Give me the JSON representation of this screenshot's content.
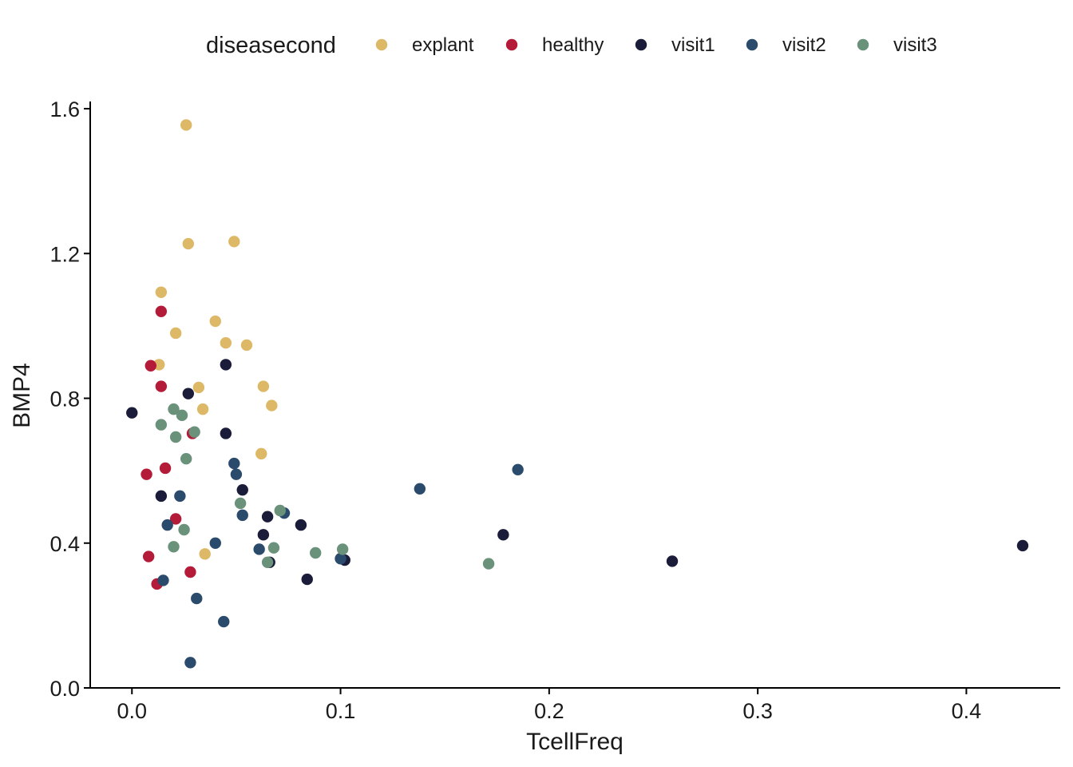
{
  "chart_data": {
    "type": "scatter",
    "title": "",
    "xlabel": "TcellFreq",
    "ylabel": "BMP4",
    "xlim": [
      -0.02,
      0.445
    ],
    "ylim": [
      0.0,
      1.62
    ],
    "xticks": [
      0.0,
      0.1,
      0.2,
      0.3,
      0.4
    ],
    "xtick_labels": [
      "0.0",
      "0.1",
      "0.2",
      "0.3",
      "0.4"
    ],
    "yticks": [
      0.0,
      0.4,
      0.8,
      1.2,
      1.6
    ],
    "ytick_labels": [
      "0.0",
      "0.4",
      "0.8",
      "1.2",
      "1.6"
    ],
    "grid": false,
    "legend": {
      "title": "diseasecond",
      "position": "top"
    },
    "series": [
      {
        "name": "explant",
        "color": "#DDB867",
        "points": [
          [
            0.026,
            1.555
          ],
          [
            0.027,
            1.227
          ],
          [
            0.049,
            1.233
          ],
          [
            0.014,
            1.093
          ],
          [
            0.04,
            1.013
          ],
          [
            0.021,
            0.98
          ],
          [
            0.045,
            0.953
          ],
          [
            0.055,
            0.947
          ],
          [
            0.013,
            0.893
          ],
          [
            0.063,
            0.833
          ],
          [
            0.032,
            0.83
          ],
          [
            0.034,
            0.77
          ],
          [
            0.067,
            0.78
          ],
          [
            0.062,
            0.647
          ],
          [
            0.035,
            0.37
          ]
        ]
      },
      {
        "name": "healthy",
        "color": "#B31B38",
        "points": [
          [
            0.014,
            1.04
          ],
          [
            0.009,
            0.89
          ],
          [
            0.014,
            0.833
          ],
          [
            0.029,
            0.703
          ],
          [
            0.016,
            0.607
          ],
          [
            0.007,
            0.59
          ],
          [
            0.021,
            0.467
          ],
          [
            0.008,
            0.363
          ],
          [
            0.028,
            0.32
          ],
          [
            0.012,
            0.287
          ]
        ]
      },
      {
        "name": "visit1",
        "color": "#1A1C3A",
        "points": [
          [
            0.045,
            0.893
          ],
          [
            0.027,
            0.813
          ],
          [
            0.0,
            0.76
          ],
          [
            0.045,
            0.703
          ],
          [
            0.053,
            0.547
          ],
          [
            0.014,
            0.53
          ],
          [
            0.065,
            0.473
          ],
          [
            0.081,
            0.45
          ],
          [
            0.063,
            0.423
          ],
          [
            0.178,
            0.423
          ],
          [
            0.427,
            0.393
          ],
          [
            0.102,
            0.353
          ],
          [
            0.066,
            0.347
          ],
          [
            0.259,
            0.35
          ],
          [
            0.084,
            0.3
          ]
        ]
      },
      {
        "name": "visit2",
        "color": "#2B4B6D",
        "points": [
          [
            0.185,
            0.603
          ],
          [
            0.049,
            0.62
          ],
          [
            0.05,
            0.59
          ],
          [
            0.138,
            0.55
          ],
          [
            0.023,
            0.53
          ],
          [
            0.073,
            0.483
          ],
          [
            0.053,
            0.477
          ],
          [
            0.017,
            0.45
          ],
          [
            0.04,
            0.4
          ],
          [
            0.061,
            0.383
          ],
          [
            0.1,
            0.357
          ],
          [
            0.015,
            0.297
          ],
          [
            0.031,
            0.247
          ],
          [
            0.044,
            0.183
          ],
          [
            0.028,
            0.07
          ]
        ]
      },
      {
        "name": "visit3",
        "color": "#6A927B",
        "points": [
          [
            0.02,
            0.77
          ],
          [
            0.024,
            0.753
          ],
          [
            0.014,
            0.727
          ],
          [
            0.03,
            0.707
          ],
          [
            0.021,
            0.693
          ],
          [
            0.026,
            0.633
          ],
          [
            0.052,
            0.51
          ],
          [
            0.071,
            0.49
          ],
          [
            0.025,
            0.437
          ],
          [
            0.02,
            0.39
          ],
          [
            0.068,
            0.387
          ],
          [
            0.101,
            0.383
          ],
          [
            0.088,
            0.373
          ],
          [
            0.065,
            0.347
          ],
          [
            0.171,
            0.343
          ]
        ]
      }
    ]
  }
}
